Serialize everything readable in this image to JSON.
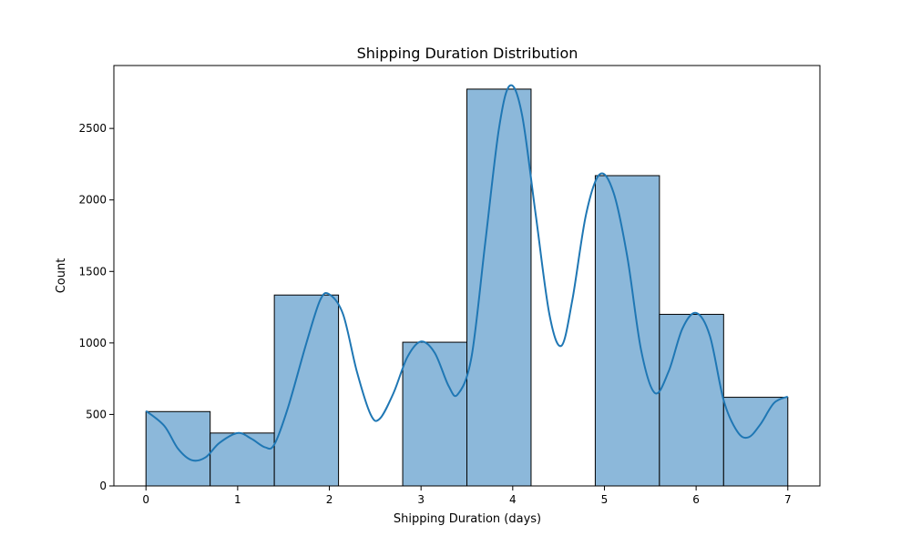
{
  "chart_data": {
    "type": "bar",
    "title": "Shipping Duration Distribution",
    "xlabel": "Shipping Duration (days)",
    "ylabel": "Count",
    "xlim": [
      -0.35,
      7.35
    ],
    "ylim": [
      0,
      2940
    ],
    "xticks": [
      0,
      1,
      2,
      3,
      4,
      5,
      6,
      7
    ],
    "yticks": [
      0,
      500,
      1000,
      1500,
      2000,
      2500
    ],
    "bins": [
      {
        "start": 0.0,
        "end": 0.7,
        "count": 520
      },
      {
        "start": 0.7,
        "end": 1.4,
        "count": 370
      },
      {
        "start": 1.4,
        "end": 2.1,
        "count": 1335
      },
      {
        "start": 2.1,
        "end": 2.8,
        "count": 0
      },
      {
        "start": 2.8,
        "end": 3.5,
        "count": 1005
      },
      {
        "start": 3.5,
        "end": 4.2,
        "count": 2775
      },
      {
        "start": 4.2,
        "end": 4.9,
        "count": 0
      },
      {
        "start": 4.9,
        "end": 5.6,
        "count": 2170
      },
      {
        "start": 5.6,
        "end": 6.3,
        "count": 1200
      },
      {
        "start": 6.3,
        "end": 7.0,
        "count": 620
      }
    ],
    "kde": [
      [
        0.0,
        525
      ],
      [
        0.2,
        420
      ],
      [
        0.35,
        260
      ],
      [
        0.5,
        180
      ],
      [
        0.65,
        200
      ],
      [
        0.8,
        300
      ],
      [
        1.0,
        370
      ],
      [
        1.15,
        330
      ],
      [
        1.3,
        270
      ],
      [
        1.4,
        290
      ],
      [
        1.55,
        550
      ],
      [
        1.75,
        1000
      ],
      [
        1.9,
        1300
      ],
      [
        2.0,
        1340
      ],
      [
        2.15,
        1200
      ],
      [
        2.3,
        800
      ],
      [
        2.45,
        500
      ],
      [
        2.55,
        470
      ],
      [
        2.7,
        650
      ],
      [
        2.85,
        900
      ],
      [
        3.0,
        1010
      ],
      [
        3.15,
        930
      ],
      [
        3.3,
        700
      ],
      [
        3.4,
        640
      ],
      [
        3.55,
        900
      ],
      [
        3.7,
        1700
      ],
      [
        3.85,
        2500
      ],
      [
        3.97,
        2800
      ],
      [
        4.1,
        2600
      ],
      [
        4.25,
        1900
      ],
      [
        4.4,
        1200
      ],
      [
        4.53,
        980
      ],
      [
        4.65,
        1300
      ],
      [
        4.8,
        1900
      ],
      [
        4.95,
        2180
      ],
      [
        5.1,
        2050
      ],
      [
        5.25,
        1600
      ],
      [
        5.4,
        950
      ],
      [
        5.55,
        650
      ],
      [
        5.7,
        800
      ],
      [
        5.85,
        1100
      ],
      [
        6.0,
        1210
      ],
      [
        6.15,
        1050
      ],
      [
        6.3,
        600
      ],
      [
        6.45,
        380
      ],
      [
        6.57,
        340
      ],
      [
        6.7,
        430
      ],
      [
        6.85,
        580
      ],
      [
        7.0,
        625
      ]
    ],
    "bar_fill": "#8cb8da",
    "bar_edge": "#000000",
    "kde_color": "#1f77b4",
    "grid": false,
    "legend": "none"
  }
}
